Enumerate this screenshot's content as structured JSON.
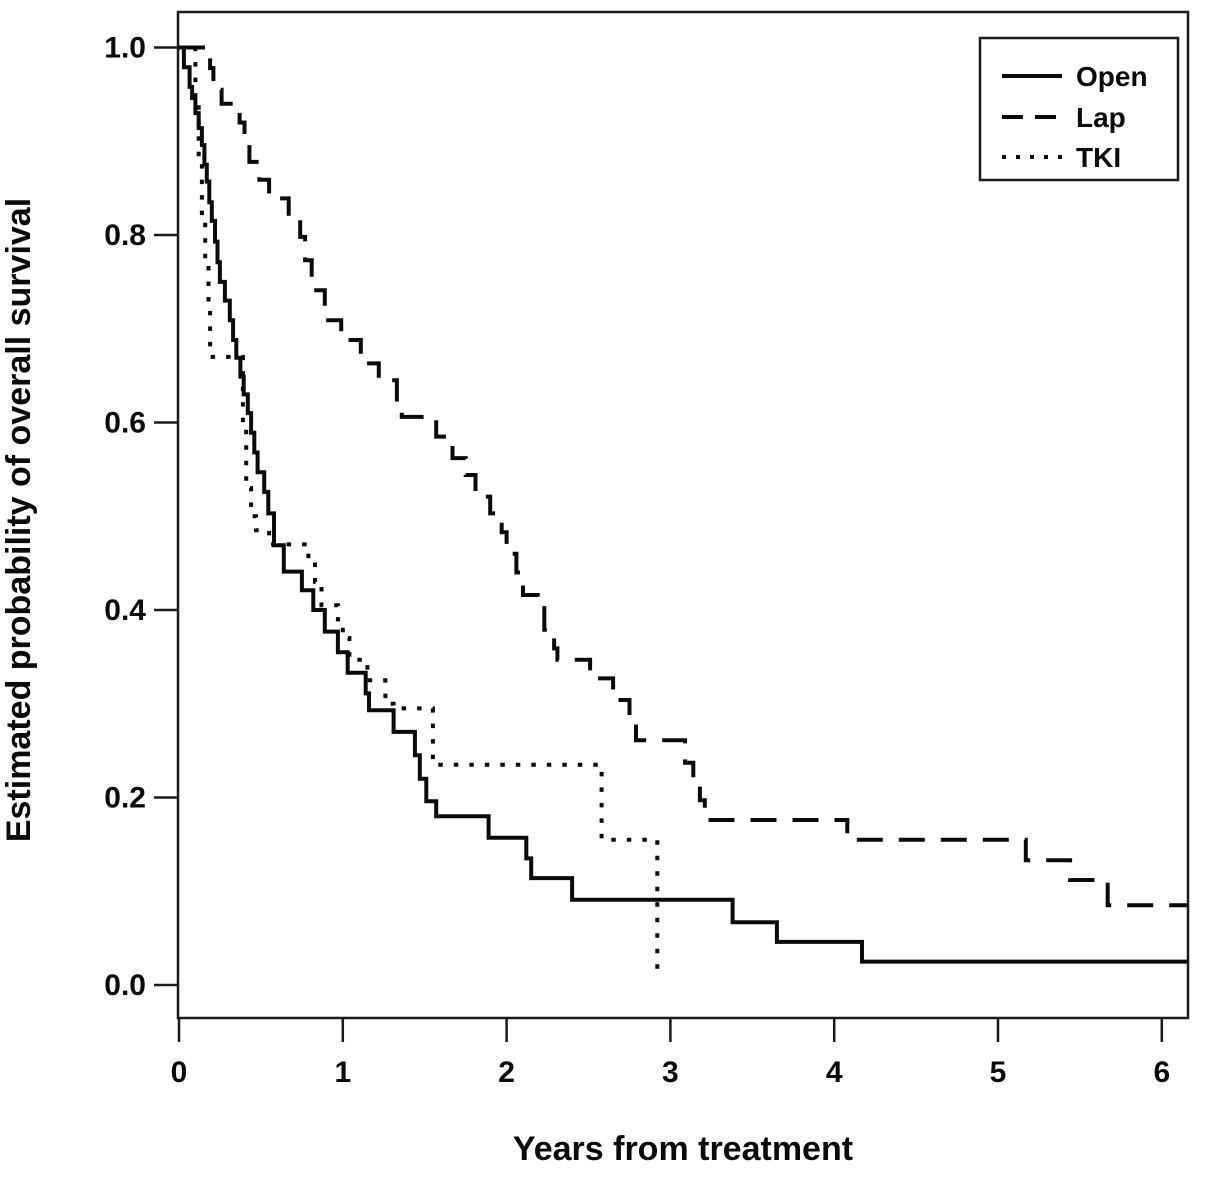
{
  "figure": {
    "background": "#ffffff",
    "line_color": "#0a0a0a"
  },
  "chart_data": {
    "type": "line",
    "subtype": "kaplan-meier-step-curves",
    "title": "",
    "xlabel": "Years from treatment",
    "ylabel": "Estimated probability of overall survival",
    "xlim": [
      0,
      6.16
    ],
    "ylim": [
      0,
      1.0
    ],
    "grid": false,
    "xticks": [
      {
        "value": 0,
        "label": "0"
      },
      {
        "value": 1,
        "label": "1"
      },
      {
        "value": 2,
        "label": "2"
      },
      {
        "value": 3,
        "label": "3"
      },
      {
        "value": 4,
        "label": "4"
      },
      {
        "value": 5,
        "label": "5"
      },
      {
        "value": 6,
        "label": "6"
      }
    ],
    "yticks": [
      {
        "value": 0.0,
        "label": "0.0"
      },
      {
        "value": 0.2,
        "label": "0.2"
      },
      {
        "value": 0.4,
        "label": "0.4"
      },
      {
        "value": 0.6,
        "label": "0.6"
      },
      {
        "value": 0.8,
        "label": "0.8"
      },
      {
        "value": 1.0,
        "label": "1.0"
      }
    ],
    "legend": {
      "position": "top-right",
      "entries": [
        {
          "name": "Open",
          "style": "solid"
        },
        {
          "name": "Lap",
          "style": "dashed"
        },
        {
          "name": "TKI",
          "style": "dotted"
        }
      ]
    },
    "series": [
      {
        "name": "Open",
        "style": "solid",
        "end_time": 6.16,
        "points": [
          [
            0,
            1.0
          ],
          [
            0.03,
            0.979
          ],
          [
            0.065,
            0.958
          ],
          [
            0.08,
            0.946
          ],
          [
            0.1,
            0.93
          ],
          [
            0.12,
            0.914
          ],
          [
            0.14,
            0.896
          ],
          [
            0.155,
            0.875
          ],
          [
            0.17,
            0.857
          ],
          [
            0.185,
            0.835
          ],
          [
            0.2,
            0.815
          ],
          [
            0.22,
            0.793
          ],
          [
            0.235,
            0.771
          ],
          [
            0.25,
            0.75
          ],
          [
            0.28,
            0.73
          ],
          [
            0.31,
            0.709
          ],
          [
            0.33,
            0.688
          ],
          [
            0.35,
            0.669
          ],
          [
            0.375,
            0.649
          ],
          [
            0.395,
            0.63
          ],
          [
            0.42,
            0.61
          ],
          [
            0.44,
            0.589
          ],
          [
            0.46,
            0.568
          ],
          [
            0.48,
            0.547
          ],
          [
            0.52,
            0.526
          ],
          [
            0.545,
            0.503
          ],
          [
            0.58,
            0.469
          ],
          [
            0.64,
            0.441
          ],
          [
            0.75,
            0.421
          ],
          [
            0.82,
            0.4
          ],
          [
            0.89,
            0.377
          ],
          [
            0.97,
            0.355
          ],
          [
            1.03,
            0.333
          ],
          [
            1.14,
            0.311
          ],
          [
            1.16,
            0.293
          ],
          [
            1.31,
            0.27
          ],
          [
            1.44,
            0.245
          ],
          [
            1.47,
            0.22
          ],
          [
            1.51,
            0.196
          ],
          [
            1.57,
            0.18
          ],
          [
            1.89,
            0.157
          ],
          [
            2.12,
            0.135
          ],
          [
            2.15,
            0.114
          ],
          [
            2.4,
            0.091
          ],
          [
            3.38,
            0.067
          ],
          [
            3.65,
            0.046
          ],
          [
            4.17,
            0.025
          ]
        ]
      },
      {
        "name": "Lap",
        "style": "dashed",
        "end_time": 6.16,
        "points": [
          [
            0,
            1.0
          ],
          [
            0.19,
            0.978
          ],
          [
            0.21,
            0.955
          ],
          [
            0.26,
            0.94
          ],
          [
            0.37,
            0.92
          ],
          [
            0.4,
            0.9
          ],
          [
            0.43,
            0.878
          ],
          [
            0.49,
            0.859
          ],
          [
            0.55,
            0.839
          ],
          [
            0.67,
            0.82
          ],
          [
            0.74,
            0.798
          ],
          [
            0.77,
            0.773
          ],
          [
            0.81,
            0.741
          ],
          [
            0.89,
            0.709
          ],
          [
            0.99,
            0.688
          ],
          [
            1.11,
            0.663
          ],
          [
            1.22,
            0.645
          ],
          [
            1.33,
            0.621
          ],
          [
            1.36,
            0.606
          ],
          [
            1.57,
            0.585
          ],
          [
            1.67,
            0.562
          ],
          [
            1.75,
            0.544
          ],
          [
            1.81,
            0.521
          ],
          [
            1.9,
            0.503
          ],
          [
            1.97,
            0.483
          ],
          [
            2.0,
            0.46
          ],
          [
            2.06,
            0.44
          ],
          [
            2.1,
            0.416
          ],
          [
            2.19,
            0.402
          ],
          [
            2.23,
            0.379
          ],
          [
            2.29,
            0.359
          ],
          [
            2.31,
            0.347
          ],
          [
            2.51,
            0.327
          ],
          [
            2.65,
            0.304
          ],
          [
            2.75,
            0.281
          ],
          [
            2.79,
            0.261
          ],
          [
            3.09,
            0.237
          ],
          [
            3.14,
            0.219
          ],
          [
            3.18,
            0.197
          ],
          [
            3.21,
            0.176
          ],
          [
            4.08,
            0.155
          ],
          [
            5.17,
            0.133
          ],
          [
            5.44,
            0.112
          ],
          [
            5.67,
            0.085
          ]
        ]
      },
      {
        "name": "TKI",
        "style": "dotted",
        "end_time": 2.92,
        "points": [
          [
            0,
            1.0
          ],
          [
            0.1,
            0.94
          ],
          [
            0.12,
            0.88
          ],
          [
            0.14,
            0.82
          ],
          [
            0.16,
            0.77
          ],
          [
            0.18,
            0.72
          ],
          [
            0.19,
            0.67
          ],
          [
            0.39,
            0.6
          ],
          [
            0.41,
            0.53
          ],
          [
            0.44,
            0.5
          ],
          [
            0.47,
            0.485
          ],
          [
            0.55,
            0.47
          ],
          [
            0.79,
            0.455
          ],
          [
            0.83,
            0.43
          ],
          [
            0.87,
            0.405
          ],
          [
            0.97,
            0.39
          ],
          [
            1.0,
            0.37
          ],
          [
            1.04,
            0.347
          ],
          [
            1.15,
            0.325
          ],
          [
            1.26,
            0.3
          ],
          [
            1.31,
            0.295
          ],
          [
            1.55,
            0.235
          ],
          [
            2.58,
            0.155
          ],
          [
            2.92,
            0.013
          ]
        ]
      }
    ]
  }
}
